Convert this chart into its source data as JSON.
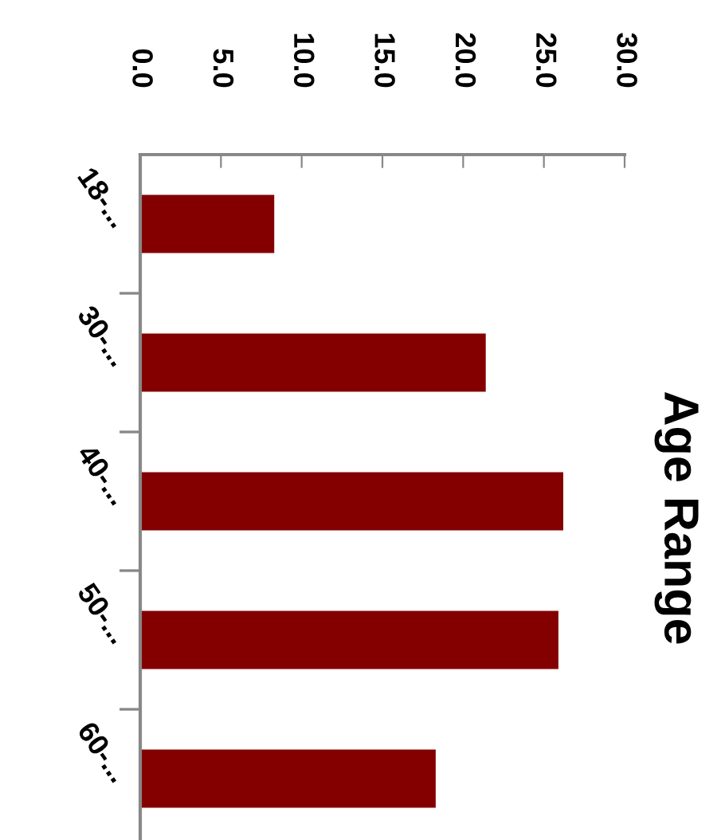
{
  "chart_data": {
    "type": "bar",
    "orientation": "horizontal",
    "title": "Age Range",
    "categories": [
      "18-...",
      "30-...",
      "40-...",
      "50-...",
      "60-..."
    ],
    "values": [
      8.3,
      21.4,
      26.2,
      25.9,
      18.3
    ],
    "color": "#840000",
    "xlim": [
      0,
      30
    ],
    "xticks": [
      {
        "value": 0,
        "label": "0.0"
      },
      {
        "value": 5,
        "label": "5.0"
      },
      {
        "value": 10,
        "label": "10.0"
      },
      {
        "value": 15,
        "label": "15.0"
      },
      {
        "value": 20,
        "label": "20.0"
      },
      {
        "value": 25,
        "label": "25.0"
      },
      {
        "value": 30,
        "label": "30.0"
      }
    ],
    "grid": false
  }
}
